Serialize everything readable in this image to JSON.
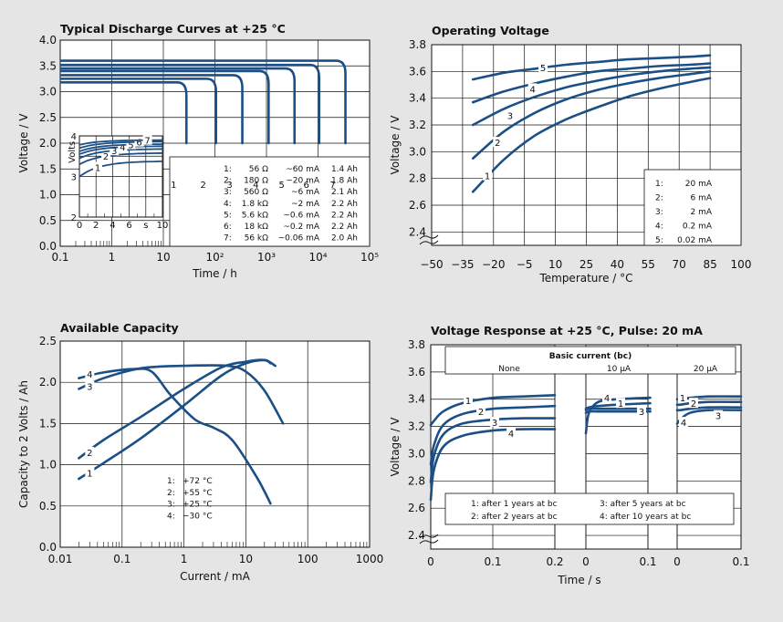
{
  "chart_data": [
    {
      "type": "line",
      "title": "Typical Discharge Curves at +25 °C",
      "xlabel": "Time / h",
      "ylabel": "Voltage / V",
      "x_scale": "log",
      "xlim": [
        0.1,
        100000
      ],
      "ylim": [
        0,
        4
      ],
      "x_ticks": [
        "0.1",
        "1",
        "10",
        "10²",
        "10³",
        "10⁴",
        "10⁵"
      ],
      "y_ticks": [
        "0.0",
        "0.5",
        "1.0",
        "1.5",
        "2.0",
        "2.5",
        "3.0",
        "3.5",
        "4.0"
      ],
      "series": [
        {
          "name": "1",
          "plateau": 3.18,
          "end_h": 28
        },
        {
          "name": "2",
          "plateau": 3.25,
          "end_h": 105
        },
        {
          "name": "3",
          "plateau": 3.32,
          "end_h": 340
        },
        {
          "name": "4",
          "plateau": 3.4,
          "end_h": 1100
        },
        {
          "name": "5",
          "plateau": 3.45,
          "end_h": 3500
        },
        {
          "name": "6",
          "plateau": 3.52,
          "end_h": 10500
        },
        {
          "name": "7",
          "plateau": 3.6,
          "end_h": 34000
        }
      ],
      "legend": [
        [
          "1:",
          "56 Ω",
          "~60 mA",
          "1.4 Ah"
        ],
        [
          "2:",
          "180 Ω",
          "~20 mA",
          "1.8 Ah"
        ],
        [
          "3:",
          "560 Ω",
          "~6 mA",
          "2.1 Ah"
        ],
        [
          "4:",
          "1.8 kΩ",
          "~2 mA",
          "2.2 Ah"
        ],
        [
          "5:",
          "5.6 kΩ",
          "~0.6 mA",
          "2.2 Ah"
        ],
        [
          "6:",
          "18 kΩ",
          "~0.2 mA",
          "2.2 Ah"
        ],
        [
          "7:",
          "56 kΩ",
          "~0.06 mA",
          "2.0 Ah"
        ]
      ],
      "inset": {
        "ylabel": "Volts",
        "x_ticks": [
          "0",
          "2",
          "4",
          "6",
          "s",
          "10"
        ],
        "y_ticks": [
          "4",
          "3",
          "2"
        ],
        "ylim": [
          2,
          4
        ],
        "series": [
          {
            "name": "1",
            "start": 3.0,
            "end": 3.38
          },
          {
            "name": "2",
            "start": 3.3,
            "end": 3.58
          },
          {
            "name": "3",
            "start": 3.45,
            "end": 3.68
          },
          {
            "name": "4",
            "start": 3.55,
            "end": 3.75
          },
          {
            "name": "5",
            "start": 3.62,
            "end": 3.8
          },
          {
            "name": "6",
            "start": 3.7,
            "end": 3.86
          },
          {
            "name": "7",
            "start": 3.78,
            "end": 3.9
          }
        ]
      }
    },
    {
      "type": "line",
      "title": "Operating Voltage",
      "xlabel": "Temperature / °C",
      "ylabel": "Voltage / V",
      "xlim": [
        -50,
        100
      ],
      "ylim": [
        2.4,
        3.8
      ],
      "x_ticks": [
        "−50",
        "−35",
        "−20",
        "−5",
        "10",
        "25",
        "40",
        "55",
        "70",
        "85",
        "100"
      ],
      "y_ticks": [
        "2.4",
        "2.6",
        "2.8",
        "3.0",
        "3.2",
        "3.4",
        "3.6",
        "3.8"
      ],
      "x": [
        -30,
        -15,
        0,
        15,
        30,
        45,
        60,
        75,
        85
      ],
      "series": [
        {
          "name": "1",
          "values": [
            2.7,
            2.94,
            3.12,
            3.24,
            3.33,
            3.41,
            3.47,
            3.52,
            3.55
          ]
        },
        {
          "name": "2",
          "values": [
            2.95,
            3.15,
            3.29,
            3.39,
            3.46,
            3.51,
            3.55,
            3.58,
            3.6
          ]
        },
        {
          "name": "3",
          "values": [
            3.2,
            3.32,
            3.41,
            3.48,
            3.53,
            3.57,
            3.6,
            3.62,
            3.63
          ]
        },
        {
          "name": "4",
          "values": [
            3.37,
            3.45,
            3.51,
            3.56,
            3.6,
            3.62,
            3.64,
            3.65,
            3.66
          ]
        },
        {
          "name": "5",
          "values": [
            3.54,
            3.59,
            3.62,
            3.65,
            3.67,
            3.69,
            3.7,
            3.71,
            3.72
          ]
        }
      ],
      "legend": [
        [
          "1:",
          "20 mA"
        ],
        [
          "2:",
          "6 mA"
        ],
        [
          "3:",
          "2 mA"
        ],
        [
          "4:",
          "0.2 mA"
        ],
        [
          "5:",
          "0.02 mA"
        ]
      ]
    },
    {
      "type": "line",
      "title": "Available Capacity",
      "xlabel": "Current / mA",
      "ylabel": "Capacity to 2 Volts / Ah",
      "x_scale": "log",
      "xlim": [
        0.01,
        1000
      ],
      "ylim": [
        0,
        2.5
      ],
      "x_ticks": [
        "0.01",
        "0.1",
        "1",
        "10",
        "100",
        "1000"
      ],
      "y_ticks": [
        "0.0",
        "0.5",
        "1.0",
        "1.5",
        "2.0",
        "2.5"
      ],
      "series": [
        {
          "name": "1",
          "x": [
            0.02,
            0.05,
            0.2,
            1,
            4,
            10,
            20,
            25
          ],
          "values": [
            0.83,
            1.02,
            1.32,
            1.72,
            2.08,
            2.23,
            2.27,
            2.23
          ]
        },
        {
          "name": "2",
          "x": [
            0.02,
            0.05,
            0.2,
            1,
            4,
            10,
            20,
            30
          ],
          "values": [
            1.08,
            1.3,
            1.58,
            1.92,
            2.18,
            2.25,
            2.27,
            2.2
          ]
        },
        {
          "name": "3",
          "x": [
            0.02,
            0.05,
            0.2,
            1,
            5,
            10,
            20,
            40
          ],
          "values": [
            1.92,
            2.05,
            2.17,
            2.2,
            2.2,
            2.13,
            1.9,
            1.5
          ]
        },
        {
          "name": "4",
          "x": [
            0.02,
            0.05,
            0.15,
            0.3,
            0.6,
            1.5,
            3,
            6,
            15,
            25
          ],
          "values": [
            2.05,
            2.12,
            2.16,
            2.13,
            1.85,
            1.55,
            1.45,
            1.3,
            0.85,
            0.53
          ]
        }
      ],
      "legend": [
        [
          "1:",
          "+72 °C"
        ],
        [
          "2:",
          "+55 °C"
        ],
        [
          "3:",
          "+25 °C"
        ],
        [
          "4:",
          "−30 °C"
        ]
      ]
    },
    {
      "type": "line",
      "title": "Voltage Response at +25 °C, Pulse: 20 mA",
      "xlabel": "Time / s",
      "ylabel": "Voltage / V",
      "ylim": [
        2.4,
        3.8
      ],
      "y_ticks": [
        "2.4",
        "2.6",
        "2.8",
        "3.0",
        "3.2",
        "3.4",
        "3.6",
        "3.8"
      ],
      "x_ticks": [
        "0",
        "0.1",
        "0.2",
        "0",
        "0.1",
        "0",
        "0.1"
      ],
      "header": {
        "title": "Basic current (bc)",
        "columns": [
          "None",
          "10 µA",
          "20 µA"
        ]
      },
      "panels": [
        {
          "label": "None",
          "x": [
            0,
            0.005,
            0.02,
            0.05,
            0.1,
            0.15,
            0.2
          ],
          "series": [
            {
              "name": "1",
              "values": [
                3.21,
                3.24,
                3.31,
                3.37,
                3.41,
                3.42,
                3.43
              ]
            },
            {
              "name": "2",
              "values": [
                2.92,
                3.06,
                3.21,
                3.29,
                3.33,
                3.34,
                3.35
              ]
            },
            {
              "name": "3",
              "values": [
                2.79,
                2.98,
                3.14,
                3.22,
                3.25,
                3.26,
                3.26
              ]
            },
            {
              "name": "4",
              "values": [
                2.66,
                2.88,
                3.05,
                3.13,
                3.17,
                3.18,
                3.18
              ]
            }
          ]
        },
        {
          "label": "10 µA",
          "x": [
            0,
            0.005,
            0.02,
            0.05,
            0.1,
            0.12
          ],
          "series": [
            {
              "name": "1",
              "values": [
                3.33,
                3.34,
                3.35,
                3.36,
                3.37,
                3.37
              ]
            },
            {
              "name": "2",
              "values": [
                3.3,
                3.31,
                3.31,
                3.31,
                3.31,
                3.31
              ]
            },
            {
              "name": "3",
              "values": [
                3.32,
                3.33,
                3.33,
                3.33,
                3.33,
                3.33
              ]
            },
            {
              "name": "4",
              "values": [
                3.15,
                3.3,
                3.38,
                3.4,
                3.41,
                3.41
              ]
            }
          ]
        },
        {
          "label": "20 µA",
          "x": [
            0,
            0.005,
            0.02,
            0.05,
            0.1
          ],
          "series": [
            {
              "name": "1",
              "values": [
                3.4,
                3.4,
                3.41,
                3.42,
                3.42
              ]
            },
            {
              "name": "2",
              "values": [
                3.36,
                3.36,
                3.37,
                3.38,
                3.38
              ]
            },
            {
              "name": "3",
              "values": [
                3.32,
                3.32,
                3.33,
                3.34,
                3.34
              ]
            },
            {
              "name": "4",
              "values": [
                3.22,
                3.25,
                3.3,
                3.32,
                3.32
              ]
            }
          ]
        }
      ],
      "legend": [
        "1: after 1 years at bc",
        "3: after 5 years at bc",
        "2: after 2 years at bc",
        "4: after 10 years at bc"
      ]
    }
  ]
}
